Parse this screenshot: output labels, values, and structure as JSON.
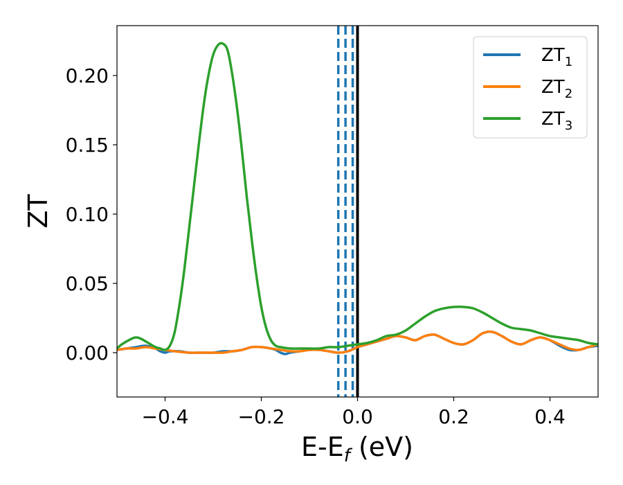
{
  "chart_data": {
    "type": "line",
    "title": "",
    "xlabel": {
      "base": "E-E",
      "sub": "f",
      "unit": " (eV)"
    },
    "ylabel": "ZT",
    "xlim": [
      -0.5,
      0.5
    ],
    "ylim": [
      -0.032,
      0.236
    ],
    "x_ticks": [
      -0.4,
      -0.2,
      0.0,
      0.2,
      0.4
    ],
    "x_tick_labels": [
      "−0.4",
      "−0.2",
      "0.0",
      "0.2",
      "0.4"
    ],
    "y_ticks": [
      0.0,
      0.05,
      0.1,
      0.15,
      0.2
    ],
    "y_tick_labels": [
      "0.00",
      "0.05",
      "0.10",
      "0.15",
      "0.20"
    ],
    "grid": false,
    "legend_position": "top-right",
    "colors": {
      "ZT1": "#1f77b4",
      "ZT2": "#ff7f0e",
      "ZT3": "#2ca02c",
      "fermi": "#000000",
      "dashed": "#1f77b4"
    },
    "vertical_lines": [
      {
        "x": 0.0,
        "style": "solid",
        "color": "#000000"
      },
      {
        "x": -0.04,
        "style": "dashed",
        "color": "#1f77b4"
      },
      {
        "x": -0.025,
        "style": "dashed",
        "color": "#1f77b4"
      },
      {
        "x": -0.01,
        "style": "dashed",
        "color": "#1f77b4"
      }
    ],
    "series": [
      {
        "name": "ZT",
        "sub": "1",
        "color": "#1f77b4",
        "points": [
          [
            -0.5,
            0.002
          ],
          [
            -0.48,
            0.003
          ],
          [
            -0.46,
            0.004
          ],
          [
            -0.44,
            0.005
          ],
          [
            -0.42,
            0.003
          ],
          [
            -0.41,
            0.001
          ],
          [
            -0.4,
            0.0
          ],
          [
            -0.39,
            0.001
          ],
          [
            -0.37,
            0.001
          ],
          [
            -0.35,
            0.0
          ],
          [
            -0.33,
            0.0
          ],
          [
            -0.3,
            0.0
          ],
          [
            -0.28,
            0.001
          ],
          [
            -0.26,
            0.001
          ],
          [
            -0.24,
            0.002
          ],
          [
            -0.22,
            0.004
          ],
          [
            -0.2,
            0.004
          ],
          [
            -0.18,
            0.003
          ],
          [
            -0.17,
            0.002
          ],
          [
            -0.16,
            0.0
          ],
          [
            -0.15,
            -0.001
          ],
          [
            -0.14,
            0.0
          ],
          [
            -0.12,
            0.001
          ],
          [
            -0.1,
            0.002
          ],
          [
            -0.08,
            0.002
          ],
          [
            -0.06,
            0.001
          ],
          [
            -0.04,
            0.0
          ],
          [
            -0.02,
            0.001
          ],
          [
            0.0,
            0.004
          ],
          [
            0.02,
            0.006
          ],
          [
            0.04,
            0.008
          ],
          [
            0.06,
            0.01
          ],
          [
            0.08,
            0.012
          ],
          [
            0.1,
            0.011
          ],
          [
            0.12,
            0.009
          ],
          [
            0.14,
            0.012
          ],
          [
            0.16,
            0.013
          ],
          [
            0.18,
            0.01
          ],
          [
            0.2,
            0.007
          ],
          [
            0.22,
            0.006
          ],
          [
            0.24,
            0.009
          ],
          [
            0.26,
            0.014
          ],
          [
            0.28,
            0.015
          ],
          [
            0.3,
            0.012
          ],
          [
            0.32,
            0.008
          ],
          [
            0.34,
            0.006
          ],
          [
            0.36,
            0.009
          ],
          [
            0.38,
            0.011
          ],
          [
            0.4,
            0.009
          ],
          [
            0.42,
            0.005
          ],
          [
            0.44,
            0.002
          ],
          [
            0.46,
            0.002
          ],
          [
            0.48,
            0.004
          ],
          [
            0.5,
            0.005
          ]
        ]
      },
      {
        "name": "ZT",
        "sub": "2",
        "color": "#ff7f0e",
        "points": [
          [
            -0.5,
            0.002
          ],
          [
            -0.48,
            0.003
          ],
          [
            -0.46,
            0.003
          ],
          [
            -0.44,
            0.004
          ],
          [
            -0.42,
            0.003
          ],
          [
            -0.4,
            0.002
          ],
          [
            -0.38,
            0.001
          ],
          [
            -0.35,
            0.0
          ],
          [
            -0.33,
            0.0
          ],
          [
            -0.3,
            0.0
          ],
          [
            -0.28,
            0.0
          ],
          [
            -0.26,
            0.001
          ],
          [
            -0.24,
            0.002
          ],
          [
            -0.22,
            0.004
          ],
          [
            -0.2,
            0.004
          ],
          [
            -0.18,
            0.003
          ],
          [
            -0.16,
            0.002
          ],
          [
            -0.14,
            0.001
          ],
          [
            -0.12,
            0.001
          ],
          [
            -0.1,
            0.002
          ],
          [
            -0.08,
            0.002
          ],
          [
            -0.06,
            0.001
          ],
          [
            -0.04,
            0.0
          ],
          [
            -0.02,
            0.001
          ],
          [
            0.0,
            0.004
          ],
          [
            0.02,
            0.006
          ],
          [
            0.04,
            0.008
          ],
          [
            0.06,
            0.01
          ],
          [
            0.08,
            0.012
          ],
          [
            0.1,
            0.011
          ],
          [
            0.12,
            0.009
          ],
          [
            0.14,
            0.012
          ],
          [
            0.16,
            0.013
          ],
          [
            0.18,
            0.01
          ],
          [
            0.2,
            0.007
          ],
          [
            0.22,
            0.006
          ],
          [
            0.24,
            0.009
          ],
          [
            0.26,
            0.014
          ],
          [
            0.28,
            0.015
          ],
          [
            0.3,
            0.012
          ],
          [
            0.32,
            0.008
          ],
          [
            0.34,
            0.006
          ],
          [
            0.36,
            0.009
          ],
          [
            0.38,
            0.011
          ],
          [
            0.4,
            0.009
          ],
          [
            0.42,
            0.006
          ],
          [
            0.44,
            0.003
          ],
          [
            0.46,
            0.002
          ],
          [
            0.48,
            0.004
          ],
          [
            0.5,
            0.006
          ]
        ]
      },
      {
        "name": "ZT",
        "sub": "3",
        "color": "#2ca02c",
        "points": [
          [
            -0.5,
            0.003
          ],
          [
            -0.49,
            0.006
          ],
          [
            -0.47,
            0.01
          ],
          [
            -0.46,
            0.011
          ],
          [
            -0.45,
            0.01
          ],
          [
            -0.43,
            0.006
          ],
          [
            -0.42,
            0.004
          ],
          [
            -0.41,
            0.003
          ],
          [
            -0.4,
            0.002
          ],
          [
            -0.39,
            0.005
          ],
          [
            -0.38,
            0.015
          ],
          [
            -0.37,
            0.035
          ],
          [
            -0.36,
            0.06
          ],
          [
            -0.35,
            0.09
          ],
          [
            -0.34,
            0.12
          ],
          [
            -0.33,
            0.15
          ],
          [
            -0.32,
            0.178
          ],
          [
            -0.31,
            0.2
          ],
          [
            -0.3,
            0.215
          ],
          [
            -0.29,
            0.222
          ],
          [
            -0.28,
            0.223
          ],
          [
            -0.27,
            0.218
          ],
          [
            -0.26,
            0.2
          ],
          [
            -0.25,
            0.175
          ],
          [
            -0.24,
            0.145
          ],
          [
            -0.23,
            0.112
          ],
          [
            -0.22,
            0.082
          ],
          [
            -0.21,
            0.055
          ],
          [
            -0.2,
            0.033
          ],
          [
            -0.19,
            0.018
          ],
          [
            -0.18,
            0.009
          ],
          [
            -0.17,
            0.005
          ],
          [
            -0.16,
            0.004
          ],
          [
            -0.14,
            0.003
          ],
          [
            -0.12,
            0.003
          ],
          [
            -0.1,
            0.003
          ],
          [
            -0.08,
            0.003
          ],
          [
            -0.06,
            0.004
          ],
          [
            -0.04,
            0.004
          ],
          [
            -0.02,
            0.005
          ],
          [
            0.0,
            0.006
          ],
          [
            0.02,
            0.007
          ],
          [
            0.04,
            0.009
          ],
          [
            0.06,
            0.012
          ],
          [
            0.08,
            0.013
          ],
          [
            0.1,
            0.016
          ],
          [
            0.12,
            0.021
          ],
          [
            0.14,
            0.026
          ],
          [
            0.16,
            0.03
          ],
          [
            0.18,
            0.032
          ],
          [
            0.2,
            0.033
          ],
          [
            0.22,
            0.033
          ],
          [
            0.24,
            0.032
          ],
          [
            0.26,
            0.029
          ],
          [
            0.28,
            0.025
          ],
          [
            0.3,
            0.021
          ],
          [
            0.32,
            0.018
          ],
          [
            0.34,
            0.017
          ],
          [
            0.36,
            0.016
          ],
          [
            0.38,
            0.014
          ],
          [
            0.4,
            0.012
          ],
          [
            0.42,
            0.011
          ],
          [
            0.44,
            0.01
          ],
          [
            0.46,
            0.009
          ],
          [
            0.48,
            0.007
          ],
          [
            0.5,
            0.006
          ]
        ]
      }
    ]
  }
}
